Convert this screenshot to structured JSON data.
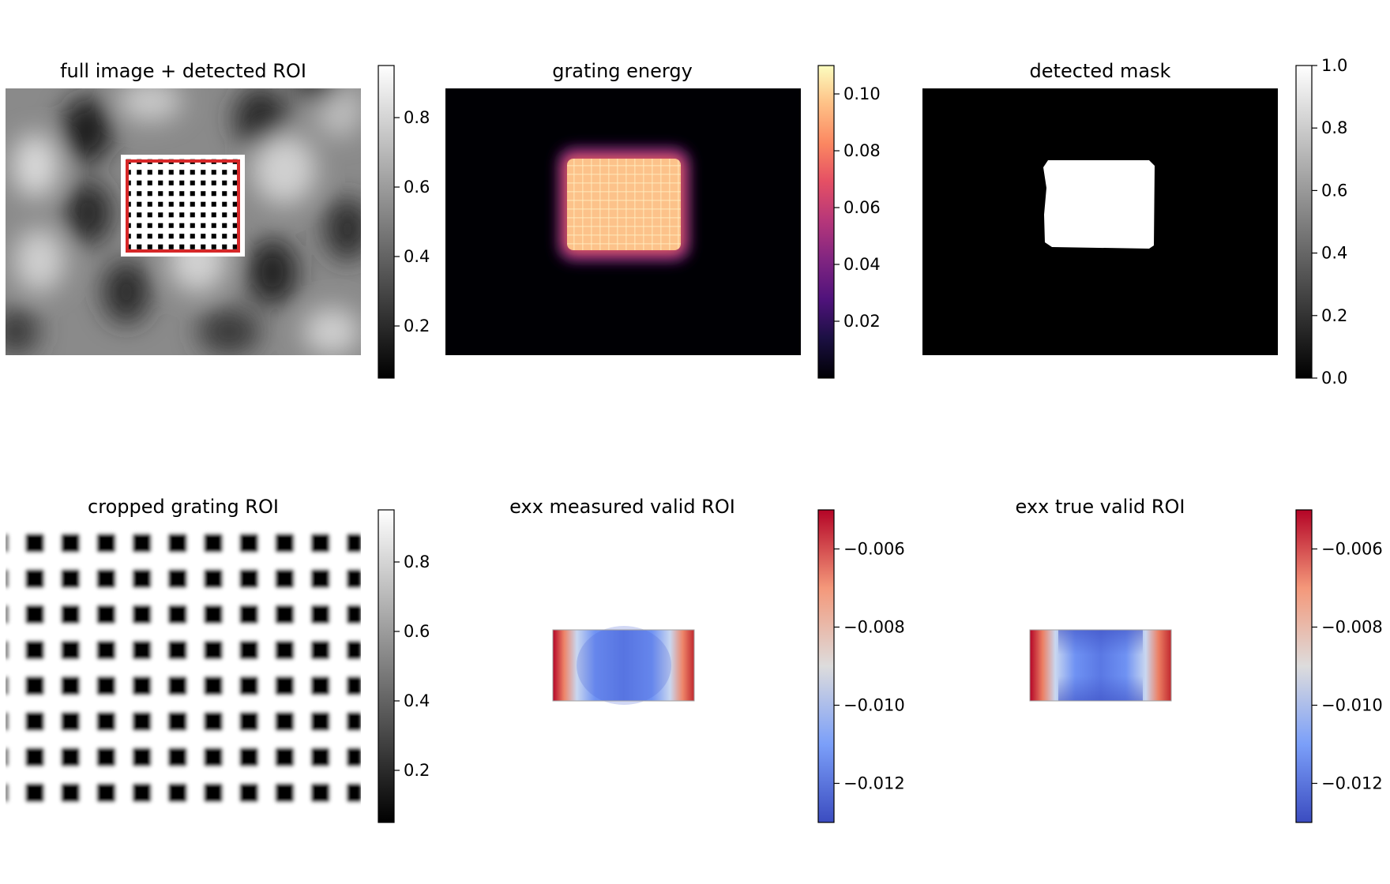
{
  "panels": [
    {
      "title": "full image + detected ROI",
      "colormap": "gray",
      "colorbar": {
        "min": 0.05,
        "max": 0.95,
        "ticks": [
          0.2,
          0.4,
          0.6,
          0.8
        ],
        "tick_labels": [
          "0.2",
          "0.4",
          "0.6",
          "0.8"
        ]
      }
    },
    {
      "title": "grating energy",
      "colormap": "magma",
      "colorbar": {
        "min": 0.0,
        "max": 0.11,
        "ticks": [
          0.02,
          0.04,
          0.06,
          0.08,
          0.1
        ],
        "tick_labels": [
          "0.02",
          "0.04",
          "0.06",
          "0.08",
          "0.10"
        ]
      }
    },
    {
      "title": "detected mask",
      "colormap": "gray",
      "colorbar": {
        "min": 0.0,
        "max": 1.0,
        "ticks": [
          0.0,
          0.2,
          0.4,
          0.6,
          0.8,
          1.0
        ],
        "tick_labels": [
          "0.0",
          "0.2",
          "0.4",
          "0.6",
          "0.8",
          "1.0"
        ]
      }
    },
    {
      "title": "cropped grating ROI",
      "colormap": "gray",
      "colorbar": {
        "min": 0.05,
        "max": 0.95,
        "ticks": [
          0.2,
          0.4,
          0.6,
          0.8
        ],
        "tick_labels": [
          "0.2",
          "0.4",
          "0.6",
          "0.8"
        ]
      }
    },
    {
      "title": "exx measured valid ROI",
      "colormap": "coolwarm",
      "colorbar": {
        "min": -0.013,
        "max": -0.005,
        "ticks": [
          -0.012,
          -0.01,
          -0.008,
          -0.006
        ],
        "tick_labels": [
          "−0.012",
          "−0.010",
          "−0.008",
          "−0.006"
        ]
      }
    },
    {
      "title": "exx true valid ROI",
      "colormap": "coolwarm",
      "colorbar": {
        "min": -0.013,
        "max": -0.005,
        "ticks": [
          -0.012,
          -0.01,
          -0.008,
          -0.006
        ],
        "tick_labels": [
          "−0.012",
          "−0.010",
          "−0.008",
          "−0.006"
        ]
      }
    }
  ],
  "colors": {
    "roi_box": "#d62728"
  }
}
